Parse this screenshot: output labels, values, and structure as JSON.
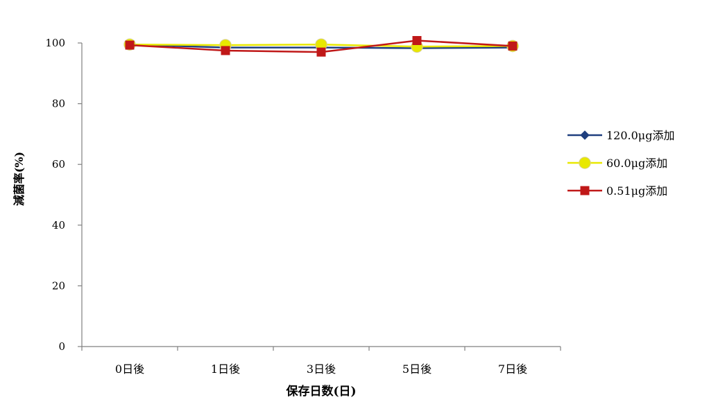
{
  "chart_data": {
    "type": "line",
    "title": "",
    "xlabel": "保存日数(日)",
    "ylabel": "減菌率(%)",
    "categories": [
      "0日後",
      "1日後",
      "3日後",
      "5日後",
      "7日後"
    ],
    "ylim": [
      0,
      100
    ],
    "yticks": [
      0,
      20,
      40,
      60,
      80,
      100
    ],
    "ytick_labels": [
      "0",
      "20",
      "40",
      "60",
      "80",
      "100"
    ],
    "grid": false,
    "legend_position": "right",
    "series": [
      {
        "name": "120.0μg添加",
        "color": "#1f3f7f",
        "marker": "diamond",
        "values": [
          99.5,
          98.5,
          98.5,
          98.3,
          98.5
        ]
      },
      {
        "name": "60.0μg添加",
        "color": "#e8e800",
        "marker": "circle",
        "values": [
          99.5,
          99.3,
          99.5,
          98.8,
          99.0
        ]
      },
      {
        "name": "0.51μg添加",
        "color": "#c01818",
        "marker": "square",
        "values": [
          99.3,
          97.5,
          97.0,
          100.8,
          99.0
        ]
      }
    ]
  }
}
